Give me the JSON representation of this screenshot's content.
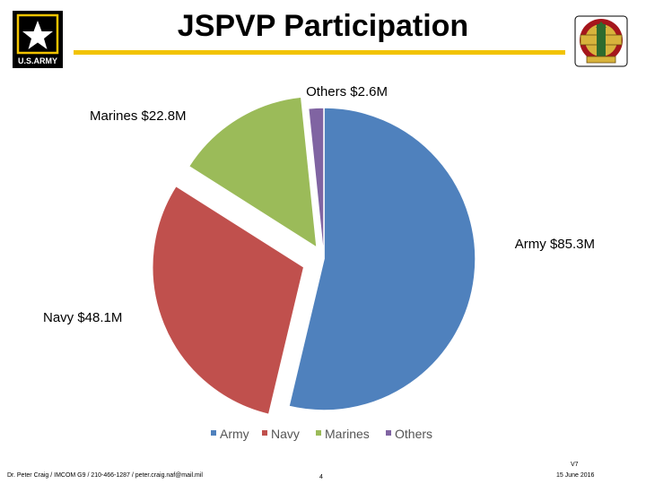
{
  "slide": {
    "title": "JSPVP Participation",
    "footer_left": "Dr. Peter Craig / IMCOM G9 / 210-466-1287 / peter.craig.naf@mail.mil",
    "page_number": "4",
    "version": "V7",
    "date": "15 June 2016",
    "logo_text": "U.S.ARMY",
    "accent_color": "#f2c300"
  },
  "chart_data": {
    "type": "pie",
    "title": "",
    "unit": "$M",
    "exploded": true,
    "legend_position": "bottom",
    "categories": [
      "Army",
      "Navy",
      "Marines",
      "Others"
    ],
    "values": [
      85.3,
      48.1,
      22.8,
      2.6
    ],
    "data_labels": [
      "Army $85.3M",
      "Navy $48.1M",
      "Marines $22.8M",
      "Others $2.6M"
    ],
    "colors": [
      "#4f81bd",
      "#c0504d",
      "#9bbb59",
      "#8064a2"
    ]
  }
}
